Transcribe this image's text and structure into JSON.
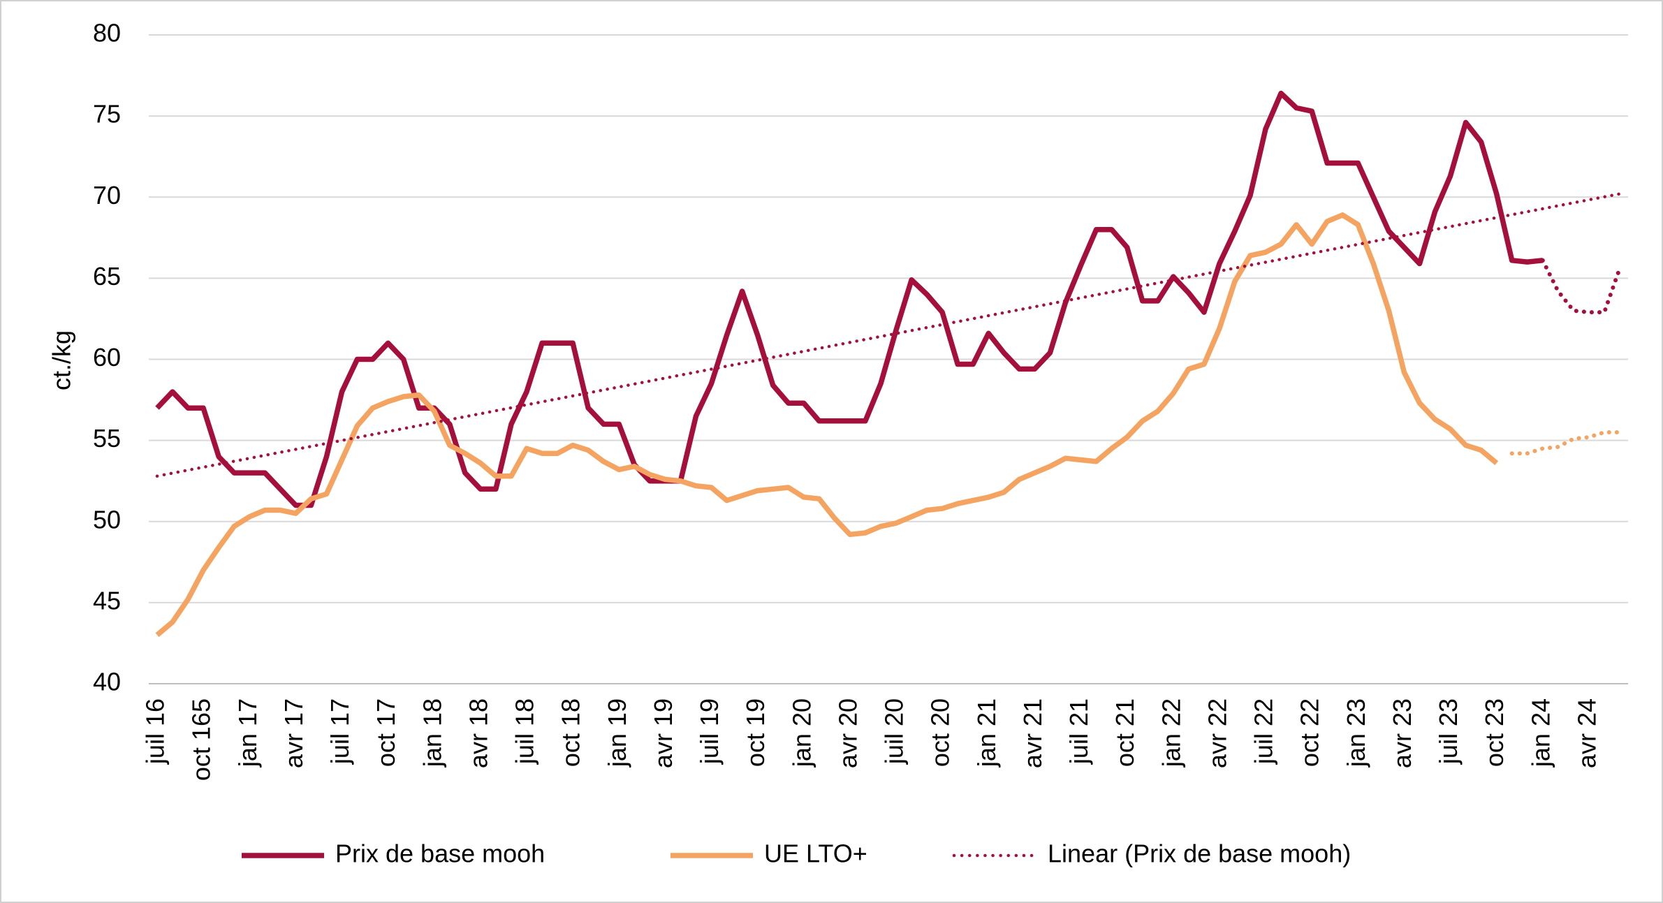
{
  "chart_data": {
    "type": "line",
    "y_label": "ct./kg",
    "categories": [
      "juil 16",
      null,
      null,
      "oct 165",
      null,
      null,
      "jan 17",
      null,
      null,
      "avr 17",
      null,
      null,
      "juil 17",
      null,
      null,
      "oct 17",
      null,
      null,
      "jan 18",
      null,
      null,
      "avr 18",
      null,
      null,
      "juil 18",
      null,
      null,
      "oct 18",
      null,
      null,
      "jan 19",
      null,
      null,
      "avr 19",
      null,
      null,
      "juil 19",
      null,
      null,
      "oct 19",
      null,
      null,
      "jan 20",
      null,
      null,
      "avr 20",
      null,
      null,
      "juil 20",
      null,
      null,
      "oct 20",
      null,
      null,
      "jan 21",
      null,
      null,
      "avr 21",
      null,
      null,
      "juil 21",
      null,
      null,
      "oct 21",
      null,
      null,
      "jan 22",
      null,
      null,
      "avr 22",
      null,
      null,
      "juil 22",
      null,
      null,
      "oct 22",
      null,
      null,
      "jan 23",
      null,
      null,
      "avr 23",
      null,
      null,
      "juil 23",
      null,
      null,
      "oct 23",
      null,
      null,
      "jan 24",
      null,
      null,
      "avr 24",
      null,
      null
    ],
    "series": [
      {
        "name": "Prix de base mooh",
        "color": "#a50f3c",
        "style": "solid",
        "values": [
          57,
          58,
          57,
          57,
          54,
          53,
          53,
          53,
          52,
          51,
          51,
          54,
          58,
          60,
          60,
          61,
          60,
          57,
          57,
          56,
          53,
          52,
          52,
          56,
          58,
          61,
          61,
          61,
          57,
          56,
          56,
          53.5,
          52.5,
          52.5,
          52.5,
          56.5,
          58.5,
          61.5,
          64.2,
          61.5,
          58.4,
          57.3,
          57.3,
          56.2,
          56.2,
          56.2,
          56.2,
          58.5,
          61.8,
          64.9,
          64,
          62.9,
          59.7,
          59.7,
          61.6,
          60.4,
          59.4,
          59.4,
          60.4,
          63.5,
          65.8,
          68,
          68,
          66.9,
          63.6,
          63.6,
          65.1,
          64.1,
          62.9,
          65.9,
          67.9,
          70.1,
          74.2,
          76.4,
          75.5,
          75.3,
          72.1,
          72.1,
          72.1,
          70,
          67.9,
          66.9,
          65.9,
          69.1,
          71.3,
          74.6,
          73.4,
          70.2,
          66.1,
          66,
          66.1,
          null,
          null,
          null,
          null,
          null
        ]
      },
      {
        "name": "UE LTO+",
        "color": "#f4a460",
        "style": "solid",
        "values": [
          43,
          43.8,
          45.2,
          47,
          48.4,
          49.7,
          50.3,
          50.7,
          50.7,
          50.5,
          51.4,
          51.7,
          53.8,
          55.9,
          57,
          57.4,
          57.7,
          57.8,
          56.8,
          54.7,
          54.2,
          53.6,
          52.8,
          52.8,
          54.5,
          54.2,
          54.2,
          54.7,
          54.4,
          53.7,
          53.2,
          53.4,
          52.9,
          52.6,
          52.5,
          52.2,
          52.1,
          51.3,
          51.6,
          51.9,
          52,
          52.1,
          51.5,
          51.4,
          50.2,
          49.2,
          49.3,
          49.7,
          49.9,
          50.3,
          50.7,
          50.8,
          51.1,
          51.3,
          51.5,
          51.8,
          52.6,
          53,
          53.4,
          53.9,
          53.8,
          53.7,
          54.5,
          55.2,
          56.2,
          56.8,
          57.9,
          59.4,
          59.7,
          61.9,
          64.8,
          66.4,
          66.6,
          67.1,
          68.3,
          67.1,
          68.5,
          68.9,
          68.3,
          65.9,
          63,
          59.2,
          57.3,
          56.3,
          55.7,
          54.7,
          54.4,
          53.6,
          null,
          null,
          null,
          null,
          null,
          null,
          null,
          null
        ]
      },
      {
        "color": "#a50f3c",
        "style": "dotted",
        "values": [
          null,
          null,
          null,
          null,
          null,
          null,
          null,
          null,
          null,
          null,
          null,
          null,
          null,
          null,
          null,
          null,
          null,
          null,
          null,
          null,
          null,
          null,
          null,
          null,
          null,
          null,
          null,
          null,
          null,
          null,
          null,
          null,
          null,
          null,
          null,
          null,
          null,
          null,
          null,
          null,
          null,
          null,
          null,
          null,
          null,
          null,
          null,
          null,
          null,
          null,
          null,
          null,
          null,
          null,
          null,
          null,
          null,
          null,
          null,
          null,
          null,
          null,
          null,
          null,
          null,
          null,
          null,
          null,
          null,
          null,
          null,
          null,
          null,
          null,
          null,
          null,
          null,
          null,
          null,
          null,
          null,
          null,
          null,
          null,
          null,
          null,
          null,
          null,
          null,
          null,
          66.1,
          64.2,
          63,
          62.9,
          62.9,
          65.6
        ]
      },
      {
        "color": "#f4a460",
        "style": "dotted",
        "values": [
          null,
          null,
          null,
          null,
          null,
          null,
          null,
          null,
          null,
          null,
          null,
          null,
          null,
          null,
          null,
          null,
          null,
          null,
          null,
          null,
          null,
          null,
          null,
          null,
          null,
          null,
          null,
          null,
          null,
          null,
          null,
          null,
          null,
          null,
          null,
          null,
          null,
          null,
          null,
          null,
          null,
          null,
          null,
          null,
          null,
          null,
          null,
          null,
          null,
          null,
          null,
          null,
          null,
          null,
          null,
          null,
          null,
          null,
          null,
          null,
          null,
          null,
          null,
          null,
          null,
          null,
          null,
          null,
          null,
          null,
          null,
          null,
          null,
          null,
          null,
          null,
          null,
          null,
          null,
          null,
          null,
          null,
          null,
          null,
          null,
          null,
          null,
          null,
          54.2,
          54.2,
          54.5,
          54.6,
          55.1,
          55.2,
          55.5,
          55.5
        ]
      }
    ],
    "trendline": {
      "name": "Linear (Prix de base mooh)",
      "color": "#a50f3c",
      "style": "dotted",
      "values": [
        52.8,
        70.2
      ]
    },
    "ylim": [
      40,
      80
    ],
    "yticks": [
      40,
      45,
      50,
      55,
      60,
      65,
      70,
      75,
      80
    ],
    "grid": true,
    "legend": "bottom"
  }
}
